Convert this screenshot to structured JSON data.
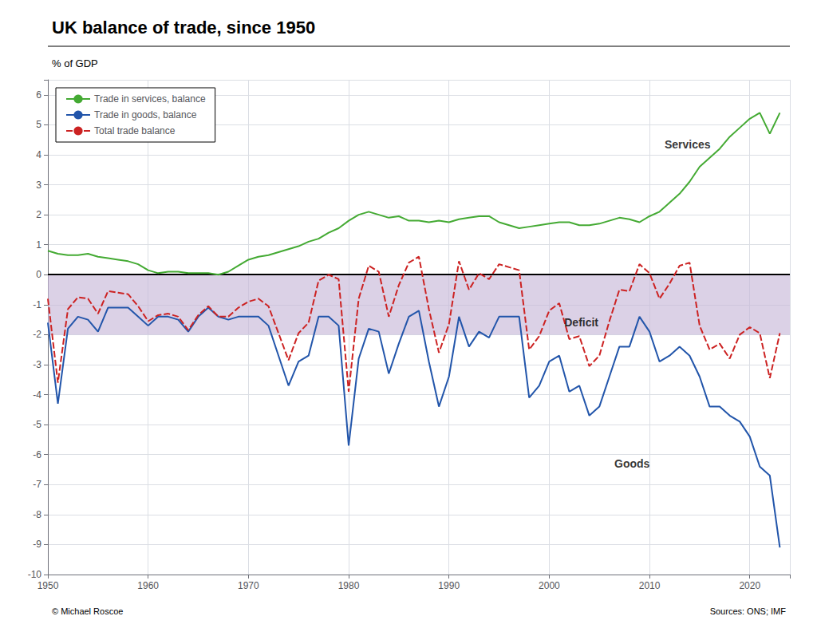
{
  "chart_data": {
    "type": "line",
    "title": "UK balance of trade, since 1950",
    "ylabel": "% of GDP",
    "source": "Sources: ONS; IMF",
    "credit": "© Michael Roscoe",
    "grid": true,
    "legend": "upper left",
    "xlim": [
      1950,
      2024
    ],
    "xticks": [
      1950,
      1960,
      1970,
      1980,
      1990,
      2000,
      2010,
      2020
    ],
    "ylim": [
      -10,
      6.5
    ],
    "yticks": [
      -10,
      -9,
      -8,
      -7,
      -6,
      -5,
      -4,
      -3,
      -2,
      -1,
      0,
      1,
      2,
      3,
      4,
      5,
      6
    ],
    "deficit_band": {
      "ymin": -2.0,
      "ymax": 0.0,
      "color": "#c8b8d8"
    },
    "reference_lines": [
      0
    ],
    "annotations": [
      {
        "text": "Services",
        "x": 2011.5,
        "y": 4.35
      },
      {
        "text": "Goods",
        "x": 2006.5,
        "y": -6.3
      },
      {
        "text": "Deficit",
        "x": 2001.5,
        "y": -1.6
      }
    ],
    "x": [
      1950,
      1951,
      1952,
      1953,
      1954,
      1955,
      1956,
      1957,
      1958,
      1959,
      1960,
      1961,
      1962,
      1963,
      1964,
      1965,
      1966,
      1967,
      1968,
      1969,
      1970,
      1971,
      1972,
      1973,
      1974,
      1975,
      1976,
      1977,
      1978,
      1979,
      1980,
      1981,
      1982,
      1983,
      1984,
      1985,
      1986,
      1987,
      1988,
      1989,
      1990,
      1991,
      1992,
      1993,
      1994,
      1995,
      1996,
      1997,
      1998,
      1999,
      2000,
      2001,
      2002,
      2003,
      2004,
      2005,
      2006,
      2007,
      2008,
      2009,
      2010,
      2011,
      2012,
      2013,
      2014,
      2015,
      2016,
      2017,
      2018,
      2019,
      2020,
      2021,
      2022,
      2023
    ],
    "series": [
      {
        "name": "Trade in services, balance",
        "color": "#44aa33",
        "line_style": "solid",
        "values": [
          0.8,
          0.7,
          0.65,
          0.65,
          0.7,
          0.6,
          0.55,
          0.5,
          0.45,
          0.35,
          0.15,
          0.05,
          0.1,
          0.1,
          0.05,
          0.05,
          0.05,
          0.0,
          0.1,
          0.3,
          0.5,
          0.6,
          0.65,
          0.75,
          0.85,
          0.95,
          1.1,
          1.2,
          1.4,
          1.55,
          1.8,
          2.0,
          2.1,
          2.0,
          1.9,
          1.95,
          1.8,
          1.8,
          1.75,
          1.8,
          1.75,
          1.85,
          1.9,
          1.95,
          1.95,
          1.75,
          1.65,
          1.55,
          1.6,
          1.65,
          1.7,
          1.75,
          1.75,
          1.65,
          1.65,
          1.7,
          1.8,
          1.9,
          1.85,
          1.75,
          1.95,
          2.1,
          2.4,
          2.7,
          3.1,
          3.6,
          3.9,
          4.2,
          4.6,
          4.9,
          5.2,
          5.4,
          4.7,
          5.4
        ]
      },
      {
        "name": "Trade in goods, balance",
        "color": "#2255aa",
        "line_style": "solid",
        "values": [
          -1.6,
          -4.3,
          -1.8,
          -1.4,
          -1.5,
          -1.9,
          -1.1,
          -1.1,
          -1.1,
          -1.4,
          -1.7,
          -1.4,
          -1.4,
          -1.5,
          -1.9,
          -1.4,
          -1.1,
          -1.4,
          -1.5,
          -1.4,
          -1.4,
          -1.4,
          -1.7,
          -2.7,
          -3.7,
          -2.9,
          -2.7,
          -1.4,
          -1.4,
          -1.7,
          -5.7,
          -2.8,
          -1.8,
          -1.9,
          -3.3,
          -2.3,
          -1.4,
          -1.2,
          -2.9,
          -4.4,
          -3.4,
          -1.4,
          -2.4,
          -1.9,
          -2.1,
          -1.4,
          -1.4,
          -1.4,
          -4.1,
          -3.7,
          -2.9,
          -2.7,
          -3.9,
          -3.7,
          -4.7,
          -4.4,
          -3.4,
          -2.4,
          -2.4,
          -1.4,
          -1.9,
          -2.9,
          -2.7,
          -2.4,
          -2.7,
          -3.4,
          -4.4,
          -4.4,
          -4.7,
          -4.9,
          -5.4,
          -6.4,
          -6.7,
          -9.1
        ]
      },
      {
        "name": "Total trade balance",
        "color": "#cc2222",
        "line_style": "dashed",
        "values": [
          -0.8,
          -3.6,
          -1.15,
          -0.75,
          -0.8,
          -1.3,
          -0.55,
          -0.6,
          -0.65,
          -1.05,
          -1.55,
          -1.35,
          -1.3,
          -1.4,
          -1.85,
          -1.35,
          -1.05,
          -1.4,
          -1.4,
          -1.1,
          -0.9,
          -0.8,
          -1.05,
          -1.95,
          -2.85,
          -1.95,
          -1.6,
          -0.2,
          0.0,
          -0.15,
          -3.9,
          -0.8,
          0.3,
          0.1,
          -1.4,
          -0.35,
          0.4,
          0.6,
          -1.15,
          -2.6,
          -1.65,
          0.45,
          -0.5,
          0.05,
          -0.15,
          0.35,
          0.25,
          0.15,
          -2.5,
          -2.05,
          -1.2,
          -0.95,
          -2.15,
          -2.05,
          -3.05,
          -2.7,
          -1.55,
          -0.5,
          -0.55,
          0.35,
          0.05,
          -0.8,
          -0.3,
          0.3,
          0.4,
          -1.7,
          -2.5,
          -2.3,
          -2.8,
          -2.0,
          -1.75,
          -1.95,
          -3.45,
          -1.95
        ]
      }
    ]
  }
}
